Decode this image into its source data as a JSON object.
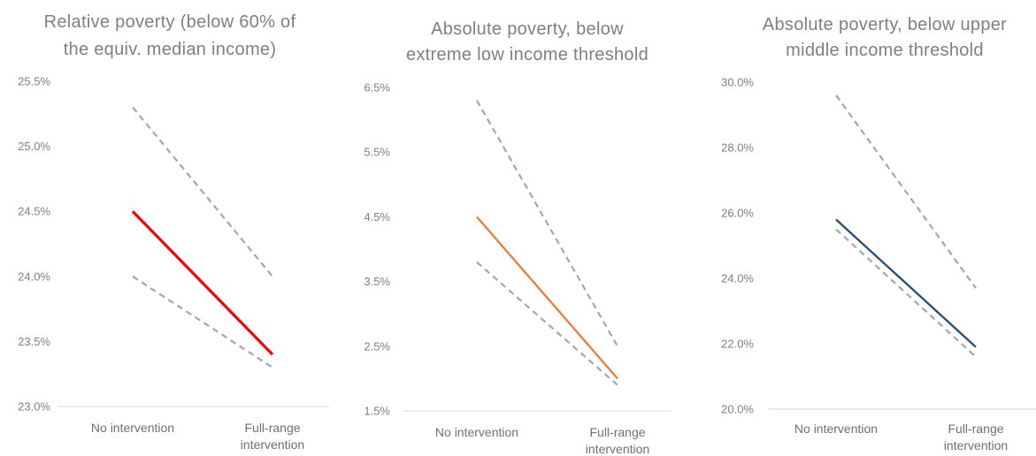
{
  "chart_data": [
    {
      "type": "line",
      "title_lines": [
        "Relative poverty (below 60% of",
        "the equiv. median income)"
      ],
      "categories": [
        "No intervention",
        [
          "Full-range",
          "intervention"
        ]
      ],
      "ylim": [
        23.0,
        25.5
      ],
      "yticks": [
        "23.0%",
        "23.5%",
        "24.0%",
        "24.5%",
        "25.0%",
        "25.5%"
      ],
      "series": [
        {
          "style": "solid",
          "color": "#ff0000",
          "values": [
            24.5,
            23.4
          ]
        },
        {
          "style": "dashed",
          "color": "#a6a6a6",
          "values": [
            25.3,
            24.0
          ]
        },
        {
          "style": "dashed",
          "color": "#a6a6a6",
          "values": [
            24.0,
            23.3
          ]
        }
      ]
    },
    {
      "type": "line",
      "title_lines": [
        "Absolute poverty, below",
        "extreme low income threshold"
      ],
      "categories": [
        "No intervention",
        [
          "Full-range",
          "intervention"
        ]
      ],
      "ylim": [
        1.5,
        6.5
      ],
      "yticks": [
        "1.5%",
        "2.5%",
        "3.5%",
        "4.5%",
        "5.5%",
        "6.5%"
      ],
      "series": [
        {
          "style": "solid",
          "color": "#ed7d31",
          "values": [
            4.5,
            2.0
          ]
        },
        {
          "style": "dashed",
          "color": "#a6a6a6",
          "values": [
            6.3,
            2.5
          ]
        },
        {
          "style": "dashed",
          "color": "#a6a6a6",
          "values": [
            3.8,
            1.9
          ]
        }
      ]
    },
    {
      "type": "line",
      "title_lines": [
        "Absolute poverty, below upper",
        "middle income threshold"
      ],
      "categories": [
        "No intervention",
        [
          "Full-range",
          "intervention"
        ]
      ],
      "ylim": [
        20.0,
        30.0
      ],
      "yticks": [
        "20.0%",
        "22.0%",
        "24.0%",
        "26.0%",
        "28.0%",
        "30.0%"
      ],
      "series": [
        {
          "style": "solid",
          "color": "#1f4e79",
          "values": [
            25.8,
            21.9
          ]
        },
        {
          "style": "dashed",
          "color": "#a6a6a6",
          "values": [
            29.6,
            23.7
          ]
        },
        {
          "style": "dashed",
          "color": "#a6a6a6",
          "values": [
            25.5,
            21.6
          ]
        }
      ]
    }
  ]
}
